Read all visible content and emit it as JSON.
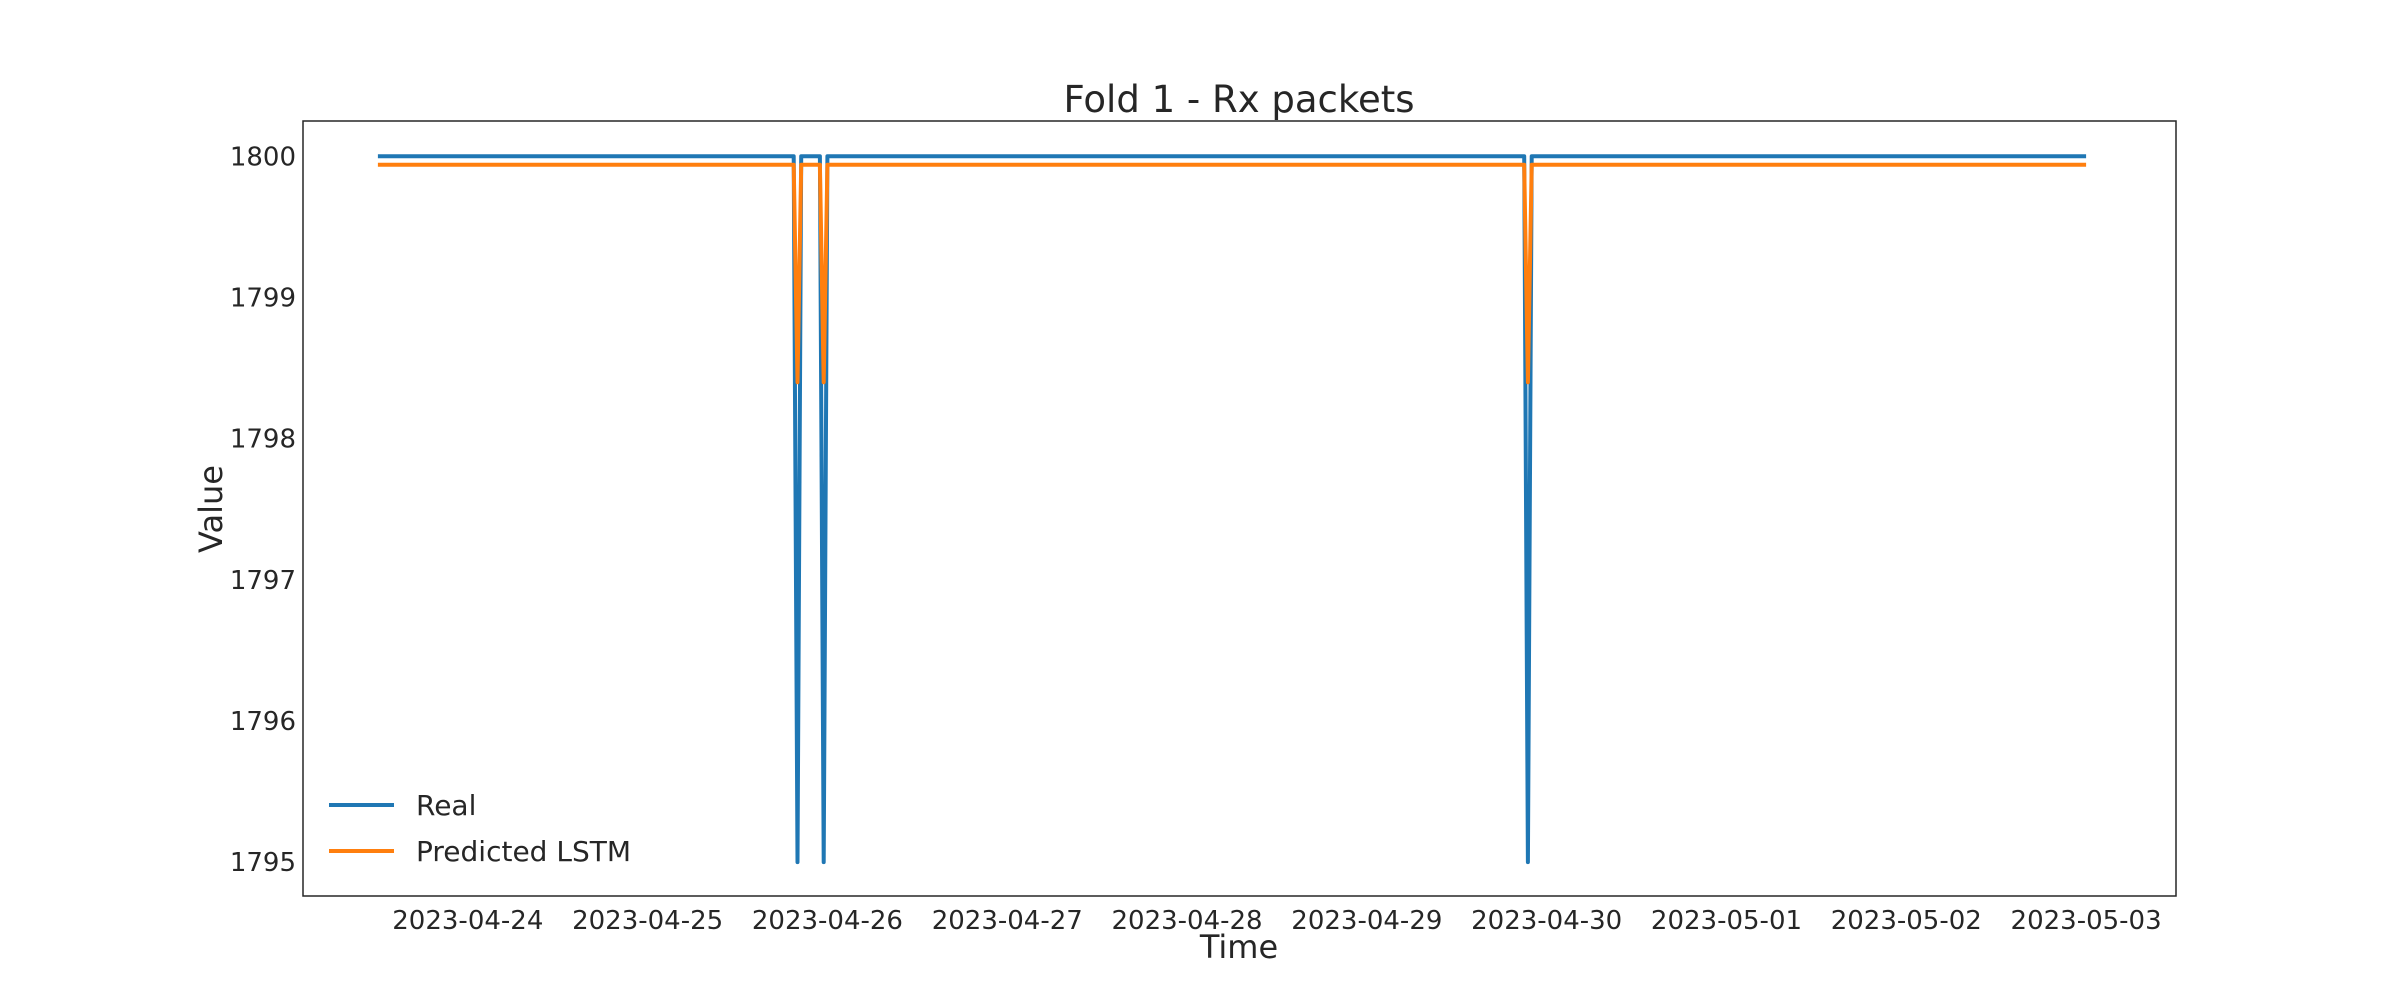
{
  "chart_data": {
    "type": "line",
    "title": "Fold 1 - Rx packets",
    "xlabel": "Time",
    "ylabel": "Value",
    "xlim": [
      "2023-04-23 02:00",
      "2023-05-03 12:00"
    ],
    "ylim": [
      1794.76,
      1800.25
    ],
    "grid": false,
    "legend_position": "lower-left",
    "x_ticks": [
      "2023-04-24",
      "2023-04-25",
      "2023-04-26",
      "2023-04-27",
      "2023-04-28",
      "2023-04-29",
      "2023-04-30",
      "2023-05-01",
      "2023-05-02",
      "2023-05-03"
    ],
    "y_ticks": [
      1795,
      1796,
      1797,
      1798,
      1799,
      1800
    ],
    "series": [
      {
        "name": "Real",
        "color": "#1f77b4",
        "points": [
          [
            "2023-04-23 12:00",
            1800
          ],
          [
            "2023-04-25 19:30",
            1800
          ],
          [
            "2023-04-25 20:00",
            1795
          ],
          [
            "2023-04-25 20:30",
            1800
          ],
          [
            "2023-04-25 23:00",
            1800
          ],
          [
            "2023-04-25 23:30",
            1795
          ],
          [
            "2023-04-26 00:00",
            1800
          ],
          [
            "2023-04-29 21:00",
            1800
          ],
          [
            "2023-04-29 21:30",
            1795
          ],
          [
            "2023-04-29 22:00",
            1800
          ],
          [
            "2023-05-03 00:00",
            1800
          ]
        ]
      },
      {
        "name": "Predicted LSTM",
        "color": "#ff7f0e",
        "points": [
          [
            "2023-04-23 12:00",
            1799.94
          ],
          [
            "2023-04-25 19:30",
            1799.94
          ],
          [
            "2023-04-25 20:00",
            1798.4
          ],
          [
            "2023-04-25 20:30",
            1799.94
          ],
          [
            "2023-04-25 23:00",
            1799.94
          ],
          [
            "2023-04-25 23:30",
            1798.4
          ],
          [
            "2023-04-26 00:00",
            1799.94
          ],
          [
            "2023-04-29 21:00",
            1799.94
          ],
          [
            "2023-04-29 21:30",
            1798.4
          ],
          [
            "2023-04-29 22:00",
            1799.94
          ],
          [
            "2023-05-03 00:00",
            1799.94
          ]
        ]
      }
    ]
  }
}
